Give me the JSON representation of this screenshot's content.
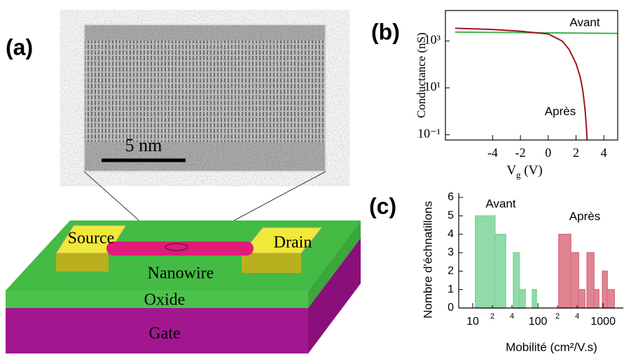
{
  "diagram": {
    "label": "(a)",
    "scale_bar": "5 nm",
    "labels": [
      "Source",
      "Drain",
      "Nanowire",
      "Oxide",
      "Gate"
    ]
  },
  "chart_data": [
    {
      "type": "line",
      "label": "(b)",
      "y_label": "Conductance (nS)",
      "x_label": "V",
      "x_label_sub": "g",
      "x_label_unit": " (V)",
      "log_y": true,
      "xlim": [
        -7.4,
        5
      ],
      "ylim": [
        0.06,
        20000
      ],
      "xticks": [
        -4,
        -2,
        0,
        2,
        4
      ],
      "yticks": [
        {
          "value": 0.1,
          "label": "10⁻¹"
        },
        {
          "value": 10,
          "label": "10¹"
        },
        {
          "value": 1000,
          "label": "10³"
        }
      ],
      "series": [
        {
          "name": "Avant",
          "color": "#3cb44b",
          "x": [
            -6.7,
            5
          ],
          "values": [
            2400,
            2100
          ]
        },
        {
          "name": "Après",
          "color": "#a0141e",
          "x": [
            -6.7,
            -4,
            -2,
            0,
            1,
            1.5,
            2,
            2.3,
            2.5,
            2.65,
            2.75,
            2.8
          ],
          "values": [
            3500,
            3100,
            2600,
            2000,
            1000,
            440,
            110,
            30,
            7,
            1.2,
            0.2,
            0.06
          ]
        }
      ]
    },
    {
      "type": "histogram",
      "label": "(c)",
      "y_label": "Nombre d'échnatillons",
      "x_label": "Mobilité (cm²/V.s)",
      "log_x": true,
      "xlim": [
        6.1,
        2040
      ],
      "ylim": [
        0,
        6
      ],
      "xticks": [
        10,
        {
          "value": 20,
          "label": "2"
        },
        {
          "value": 40,
          "label": "4"
        },
        100,
        {
          "value": 200,
          "label": "2"
        },
        {
          "value": 400,
          "label": "4"
        },
        1000
      ],
      "yticks": [
        0,
        1,
        2,
        3,
        4,
        5,
        6
      ],
      "series": [
        {
          "name": "Avant",
          "color": "#7fd49a",
          "bins": [
            11,
            22,
            32,
            42,
            52,
            64,
            82,
            95
          ],
          "values": [
            5,
            4,
            0,
            3,
            1,
            0,
            1
          ]
        },
        {
          "name": "Après",
          "color": "#d9707f",
          "bins": [
            209,
            320,
            421,
            525,
            566,
            725,
            861,
            975,
            1160,
            1486
          ],
          "values": [
            4,
            3,
            1,
            0,
            3,
            1,
            0,
            2,
            1
          ]
        }
      ]
    }
  ]
}
